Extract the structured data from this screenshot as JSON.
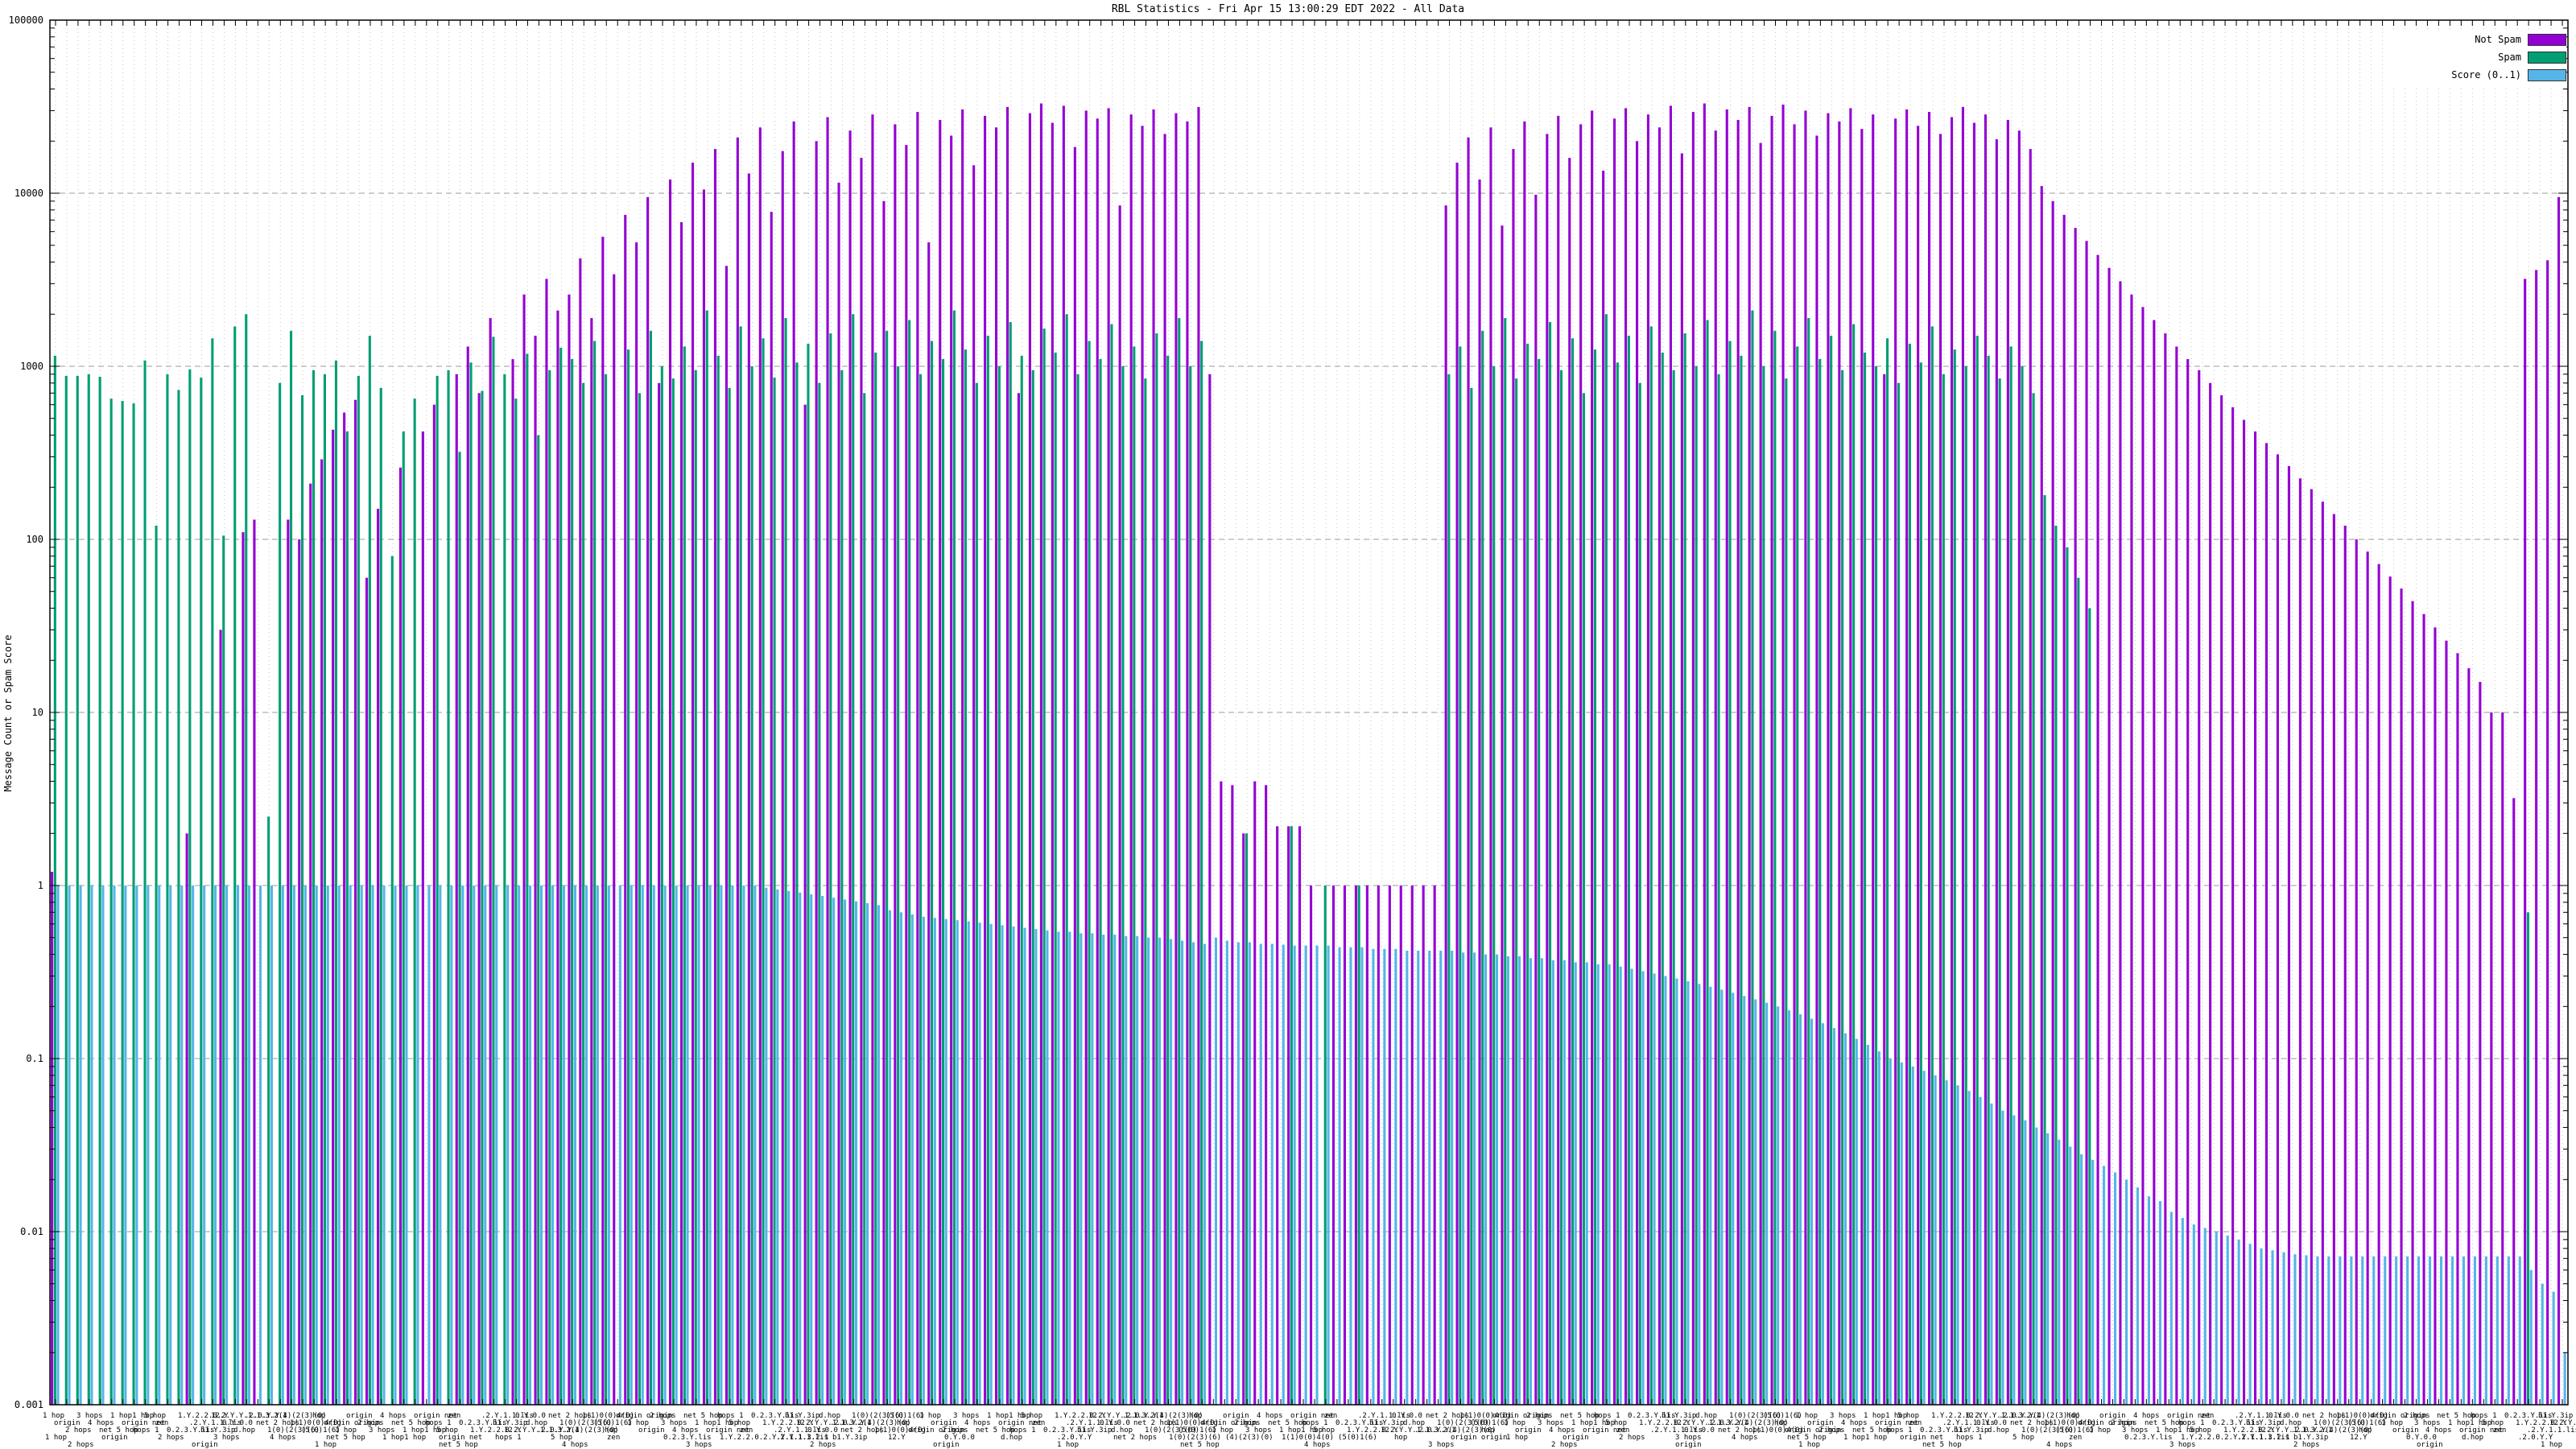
{
  "title": "RBL Statistics - Fri Apr 15 13:00:29 EDT 2022 - All Data",
  "legend": {
    "items": [
      {
        "label": "Not Spam",
        "color": "#9400D3"
      },
      {
        "label": "Spam",
        "color": "#009E73"
      },
      {
        "label": "Score (0..1)",
        "color": "#56B4E9"
      }
    ]
  },
  "chart_data": {
    "type": "bar",
    "title": "RBL Statistics - Fri Apr 15 13:00:29 EDT 2022 - All Data",
    "xlabel": "",
    "ylabel": "Message Count or Spam Score",
    "y_scale": "log",
    "ylim": [
      0.001,
      100000
    ],
    "y_tick_labels": [
      "100000",
      "10000",
      "1000",
      "100",
      "10",
      "1",
      "0.1",
      "0.01",
      "0.001"
    ],
    "grid": true,
    "legend_position": "top-right",
    "series_names": [
      "Not Spam",
      "Spam",
      "Score (0..1)"
    ],
    "series_colors": {
      "not_spam": "#9400D3",
      "spam": "#009E73",
      "score": "#56B4E9"
    },
    "x_tick_label_fragments": [
      "1 hop",
      "origin",
      "2 hops",
      "3 hops",
      "4 hops",
      "net 5 hop",
      "1 hop1 hop",
      "origin net",
      "hops 1",
      "5 hop",
      "zen",
      "0.2.3.Y.lis",
      "1.Y.2.2.0.2.Y.Y.1.1.3.2.1",
      ".2.Y.1.1.lis",
      "b1.Y.3ip",
      "12.Y",
      "0.Y.0.0",
      "d.hop",
      ".2.0.Y.Y",
      "net 2 hops",
      "1(0)(2(3)(6)",
      "(4)(2(3)(0)",
      "1(1)0(0)4(0)",
      "(5(0)1(6)",
      "hop",
      "origin origin"
    ],
    "groups_note": "each group = [not_spam, spam, score]; 0 = bar absent",
    "groups": [
      [
        1.2,
        1150,
        1
      ],
      [
        0,
        880,
        1
      ],
      [
        0,
        880,
        1
      ],
      [
        0,
        900,
        1
      ],
      [
        0,
        870,
        1
      ],
      [
        0,
        650,
        1
      ],
      [
        0,
        630,
        1
      ],
      [
        0,
        610,
        1
      ],
      [
        0,
        1080,
        1
      ],
      [
        0,
        120,
        1
      ],
      [
        0,
        900,
        1
      ],
      [
        0,
        730,
        1
      ],
      [
        2,
        960,
        1
      ],
      [
        0,
        860,
        1
      ],
      [
        0,
        1450,
        1
      ],
      [
        30,
        105,
        1
      ],
      [
        0,
        1700,
        1
      ],
      [
        110,
        2000,
        1
      ],
      [
        130,
        0,
        1
      ],
      [
        0,
        2.5,
        1
      ],
      [
        0,
        800,
        1
      ],
      [
        130,
        1600,
        1
      ],
      [
        100,
        680,
        1
      ],
      [
        210,
        950,
        1
      ],
      [
        290,
        900,
        1
      ],
      [
        430,
        1080,
        1
      ],
      [
        540,
        420,
        1
      ],
      [
        640,
        880,
        1
      ],
      [
        60,
        1500,
        1
      ],
      [
        150,
        750,
        1
      ],
      [
        0,
        80,
        1
      ],
      [
        260,
        420,
        1
      ],
      [
        0,
        650,
        1
      ],
      [
        420,
        0,
        1
      ],
      [
        600,
        880,
        1
      ],
      [
        0,
        950,
        1
      ],
      [
        900,
        320,
        1
      ],
      [
        1300,
        1050,
        1
      ],
      [
        700,
        720,
        1
      ],
      [
        1900,
        1480,
        1
      ],
      [
        0,
        900,
        1
      ],
      [
        1100,
        650,
        1
      ],
      [
        2600,
        1180,
        1
      ],
      [
        1500,
        400,
        1
      ],
      [
        3200,
        950,
        1
      ],
      [
        2100,
        1280,
        1
      ],
      [
        2600,
        1100,
        1
      ],
      [
        4200,
        800,
        1
      ],
      [
        1900,
        1400,
        1
      ],
      [
        5600,
        900,
        1
      ],
      [
        3400,
        0,
        1
      ],
      [
        7500,
        1250,
        1
      ],
      [
        5200,
        700,
        1
      ],
      [
        9500,
        1600,
        1
      ],
      [
        800,
        1000,
        1
      ],
      [
        12000,
        850,
        1
      ],
      [
        6800,
        1300,
        1
      ],
      [
        15000,
        950,
        1
      ],
      [
        10500,
        2100,
        1
      ],
      [
        18000,
        1150,
        1
      ],
      [
        3800,
        750,
        1
      ],
      [
        21000,
        1700,
        1
      ],
      [
        13000,
        1000,
        1
      ],
      [
        24000,
        1450,
        0.97
      ],
      [
        7800,
        860,
        0.95
      ],
      [
        17500,
        1900,
        0.93
      ],
      [
        26000,
        1050,
        0.91
      ],
      [
        600,
        1350,
        0.89
      ],
      [
        20000,
        800,
        0.87
      ],
      [
        27500,
        1550,
        0.85
      ],
      [
        11500,
        950,
        0.83
      ],
      [
        23000,
        2000,
        0.81
      ],
      [
        16000,
        700,
        0.79
      ],
      [
        28500,
        1200,
        0.77
      ],
      [
        9000,
        1600,
        0.72
      ],
      [
        25000,
        1000,
        0.7
      ],
      [
        19000,
        1850,
        0.68
      ],
      [
        29500,
        900,
        0.66
      ],
      [
        5200,
        1400,
        0.65
      ],
      [
        26500,
        1100,
        0.64
      ],
      [
        21500,
        2100,
        0.63
      ],
      [
        30500,
        1250,
        0.62
      ],
      [
        14500,
        800,
        0.61
      ],
      [
        28000,
        1500,
        0.6
      ],
      [
        24000,
        1000,
        0.59
      ],
      [
        31500,
        1800,
        0.58
      ],
      [
        700,
        1150,
        0.57
      ],
      [
        29000,
        950,
        0.56
      ],
      [
        33000,
        1650,
        0.55
      ],
      [
        25500,
        1200,
        0.54
      ],
      [
        32000,
        2000,
        0.54
      ],
      [
        18500,
        900,
        0.53
      ],
      [
        30000,
        1400,
        0.53
      ],
      [
        27000,
        1100,
        0.52
      ],
      [
        31000,
        1750,
        0.52
      ],
      [
        8500,
        1000,
        0.51
      ],
      [
        28500,
        1300,
        0.51
      ],
      [
        24500,
        850,
        0.5
      ],
      [
        30500,
        1550,
        0.5
      ],
      [
        22000,
        1150,
        0.49
      ],
      [
        29000,
        1900,
        0.48
      ],
      [
        26000,
        1000,
        0.47
      ],
      [
        31500,
        1400,
        0.46
      ],
      [
        900,
        0,
        0.5
      ],
      [
        4,
        0,
        0.48
      ],
      [
        3.8,
        0,
        0.47
      ],
      [
        2,
        2,
        0.47
      ],
      [
        4,
        0,
        0.46
      ],
      [
        3.8,
        0,
        0.46
      ],
      [
        2.2,
        0,
        0.455
      ],
      [
        2.2,
        2.2,
        0.45
      ],
      [
        2.2,
        0,
        0.45
      ],
      [
        1,
        0,
        0.45
      ],
      [
        0,
        1,
        0.45
      ],
      [
        1,
        0,
        0.44
      ],
      [
        1,
        0,
        0.44
      ],
      [
        1,
        1,
        0.44
      ],
      [
        1,
        0,
        0.43
      ],
      [
        1,
        0,
        0.43
      ],
      [
        1,
        0,
        0.43
      ],
      [
        1,
        0,
        0.42
      ],
      [
        1,
        0,
        0.42
      ],
      [
        1,
        0,
        0.42
      ],
      [
        1,
        0,
        0.42
      ],
      [
        8500,
        900,
        0.42
      ],
      [
        15000,
        1300,
        0.41
      ],
      [
        21000,
        750,
        0.41
      ],
      [
        12000,
        1600,
        0.4
      ],
      [
        24000,
        1000,
        0.4
      ],
      [
        6500,
        1900,
        0.39
      ],
      [
        18000,
        850,
        0.39
      ],
      [
        26000,
        1350,
        0.38
      ],
      [
        9800,
        1100,
        0.38
      ],
      [
        22000,
        1800,
        0.37
      ],
      [
        28000,
        950,
        0.37
      ],
      [
        16000,
        1450,
        0.36
      ],
      [
        25000,
        700,
        0.36
      ],
      [
        30000,
        1250,
        0.35
      ],
      [
        13500,
        2000,
        0.35
      ],
      [
        27000,
        1050,
        0.34
      ],
      [
        31000,
        1500,
        0.33
      ],
      [
        20000,
        800,
        0.32
      ],
      [
        28500,
        1700,
        0.31
      ],
      [
        24000,
        1200,
        0.3
      ],
      [
        32000,
        950,
        0.29
      ],
      [
        17000,
        1550,
        0.28
      ],
      [
        29500,
        1000,
        0.27
      ],
      [
        33000,
        1850,
        0.26
      ],
      [
        23000,
        900,
        0.25
      ],
      [
        30500,
        1400,
        0.24
      ],
      [
        26500,
        1150,
        0.23
      ],
      [
        31500,
        2100,
        0.22
      ],
      [
        19500,
        1000,
        0.21
      ],
      [
        28000,
        1600,
        0.2
      ],
      [
        32500,
        850,
        0.19
      ],
      [
        25000,
        1300,
        0.18
      ],
      [
        30000,
        1900,
        0.17
      ],
      [
        21500,
        1100,
        0.16
      ],
      [
        29000,
        1500,
        0.15
      ],
      [
        26000,
        950,
        0.14
      ],
      [
        31000,
        1750,
        0.13
      ],
      [
        23500,
        1200,
        0.12
      ],
      [
        28500,
        1000,
        0.11
      ],
      [
        900,
        1450,
        0.1
      ],
      [
        27000,
        800,
        0.095
      ],
      [
        30500,
        1350,
        0.09
      ],
      [
        24500,
        1050,
        0.085
      ],
      [
        29500,
        1700,
        0.08
      ],
      [
        22000,
        900,
        0.075
      ],
      [
        27500,
        1250,
        0.07
      ],
      [
        31500,
        1000,
        0.065
      ],
      [
        25500,
        1500,
        0.06
      ],
      [
        28500,
        1150,
        0.055
      ],
      [
        20500,
        850,
        0.05
      ],
      [
        26500,
        1300,
        0.047
      ],
      [
        23000,
        1000,
        0.044
      ],
      [
        18000,
        700,
        0.04
      ],
      [
        11000,
        180,
        0.037
      ],
      [
        9000,
        120,
        0.034
      ],
      [
        7500,
        90,
        0.031
      ],
      [
        6300,
        60,
        0.028
      ],
      [
        5300,
        40,
        0.026
      ],
      [
        4400,
        0,
        0.024
      ],
      [
        3700,
        0,
        0.022
      ],
      [
        3100,
        0,
        0.02
      ],
      [
        2600,
        0,
        0.018
      ],
      [
        2200,
        0,
        0.016
      ],
      [
        1850,
        0,
        0.015
      ],
      [
        1550,
        0,
        0.013
      ],
      [
        1300,
        0,
        0.012
      ],
      [
        1100,
        0,
        0.011
      ],
      [
        950,
        0,
        0.0105
      ],
      [
        800,
        0,
        0.01
      ],
      [
        680,
        0,
        0.0095
      ],
      [
        580,
        0,
        0.009
      ],
      [
        490,
        0,
        0.0085
      ],
      [
        420,
        0,
        0.008
      ],
      [
        360,
        0,
        0.0078
      ],
      [
        310,
        0,
        0.0076
      ],
      [
        265,
        0,
        0.0074
      ],
      [
        225,
        0,
        0.0073
      ],
      [
        195,
        0,
        0.0072
      ],
      [
        165,
        0,
        0.0072
      ],
      [
        140,
        0,
        0.0072
      ],
      [
        120,
        0,
        0.0072
      ],
      [
        100,
        0,
        0.0072
      ],
      [
        85,
        0,
        0.0072
      ],
      [
        72,
        0,
        0.0072
      ],
      [
        61,
        0,
        0.0072
      ],
      [
        52,
        0,
        0.0072
      ],
      [
        44,
        0,
        0.0072
      ],
      [
        37,
        0,
        0.0072
      ],
      [
        31,
        0,
        0.0072
      ],
      [
        26,
        0,
        0.0072
      ],
      [
        22,
        0,
        0.0072
      ],
      [
        18,
        0,
        0.0072
      ],
      [
        15,
        0,
        0.0072
      ],
      [
        10,
        0,
        0.0072
      ],
      [
        10,
        0,
        0.0072
      ],
      [
        3.2,
        0,
        0.0072
      ],
      [
        3200,
        0.7,
        0.006
      ],
      [
        3600,
        0,
        0.005
      ],
      [
        4100,
        0,
        0.0045
      ],
      [
        9500,
        0,
        0.002
      ]
    ]
  }
}
